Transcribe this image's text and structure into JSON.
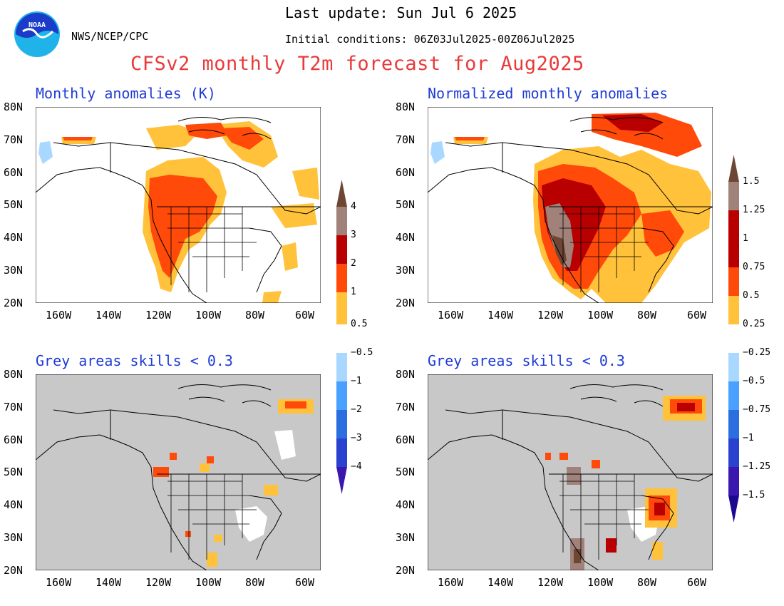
{
  "header": {
    "last_update": "Last update: Sun Jul 6 2025",
    "initial_conditions": "Initial conditions: 06Z03Jul2025-00Z06Jul2025",
    "org": "NWS/NCEP/CPC",
    "logo_text": "NOAA",
    "title": "CFSv2 monthly T2m forecast for Aug2025"
  },
  "colors": {
    "title": "#e83a3a",
    "panel_title": "#1f3bd6",
    "land_white": "#ffffff",
    "skill_grey": "#c8c8c8",
    "warm": [
      "#ffc23a",
      "#ff4a0a",
      "#b80000",
      "#a0827a",
      "#6e4634"
    ],
    "cold": [
      "#a8d8ff",
      "#4aa0ff",
      "#2a6ee0",
      "#2a42d0",
      "#3a18b0"
    ]
  },
  "axes": {
    "lat_labels": [
      "80N",
      "70N",
      "60N",
      "50N",
      "40N",
      "30N",
      "20N"
    ],
    "lon_labels": [
      "160W",
      "140W",
      "120W",
      "100W",
      "80W",
      "60W"
    ]
  },
  "panels": [
    {
      "id": "tl",
      "title": "Monthly anomalies (K)"
    },
    {
      "id": "tr",
      "title": "Normalized monthly anomalies"
    },
    {
      "id": "bl",
      "title": "Grey areas skills < 0.3"
    },
    {
      "id": "br",
      "title": "Grey areas skills < 0.3"
    }
  ],
  "colorbars": {
    "left": {
      "warm_labels": [
        "0.5",
        "1",
        "2",
        "3",
        "4"
      ],
      "cold_labels": [
        "−0.5",
        "−1",
        "−2",
        "−3",
        "−4"
      ]
    },
    "right": {
      "warm_labels": [
        "0.25",
        "0.5",
        "0.75",
        "1",
        "1.25",
        "1.5"
      ],
      "cold_labels": [
        "−0.25",
        "−0.5",
        "−0.75",
        "−1",
        "−1.25",
        "−1.5"
      ]
    }
  }
}
